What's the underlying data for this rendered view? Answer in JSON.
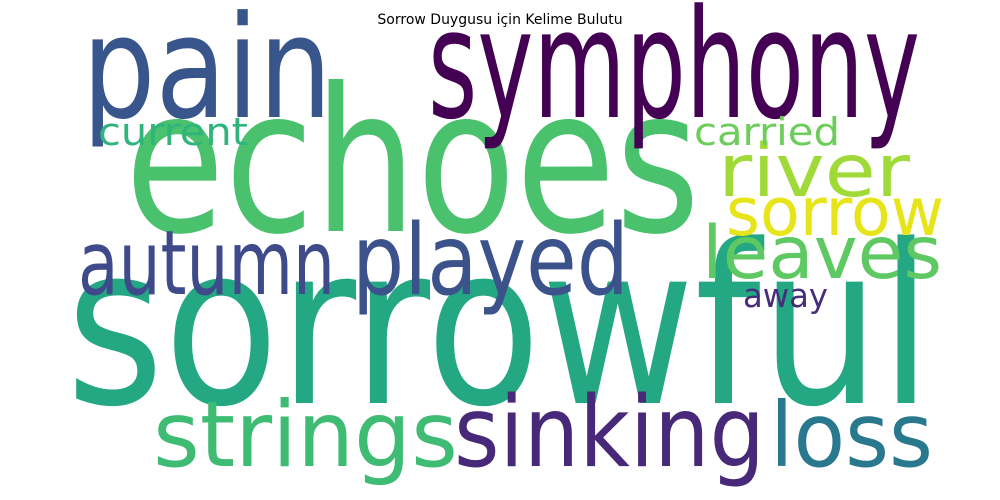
{
  "chart_data": {
    "type": "wordcloud",
    "title": "Sorrow Duygusu için Kelime Bulutu",
    "words": [
      {
        "text": "sorrowful",
        "weight": 1.0,
        "color": "#24a884"
      },
      {
        "text": "echoes",
        "weight": 0.9,
        "color": "#4ac16d"
      },
      {
        "text": "symphony",
        "weight": 0.68,
        "color": "#440154"
      },
      {
        "text": "pain",
        "weight": 0.64,
        "color": "#39568c"
      },
      {
        "text": "played",
        "weight": 0.44,
        "color": "#3b528b"
      },
      {
        "text": "sinking",
        "weight": 0.44,
        "color": "#482878"
      },
      {
        "text": "strings",
        "weight": 0.41,
        "color": "#3fbc73"
      },
      {
        "text": "autumn",
        "weight": 0.4,
        "color": "#3e4a89"
      },
      {
        "text": "loss",
        "weight": 0.4,
        "color": "#2a788e"
      },
      {
        "text": "river",
        "weight": 0.33,
        "color": "#a0da39"
      },
      {
        "text": "leaves",
        "weight": 0.33,
        "color": "#5ec962"
      },
      {
        "text": "sorrow",
        "weight": 0.3,
        "color": "#e7e419"
      },
      {
        "text": "carried",
        "weight": 0.17,
        "color": "#6ccd5a"
      },
      {
        "text": "current",
        "weight": 0.17,
        "color": "#2fb47c"
      },
      {
        "text": "away",
        "weight": 0.15,
        "color": "#472d7b"
      }
    ]
  }
}
